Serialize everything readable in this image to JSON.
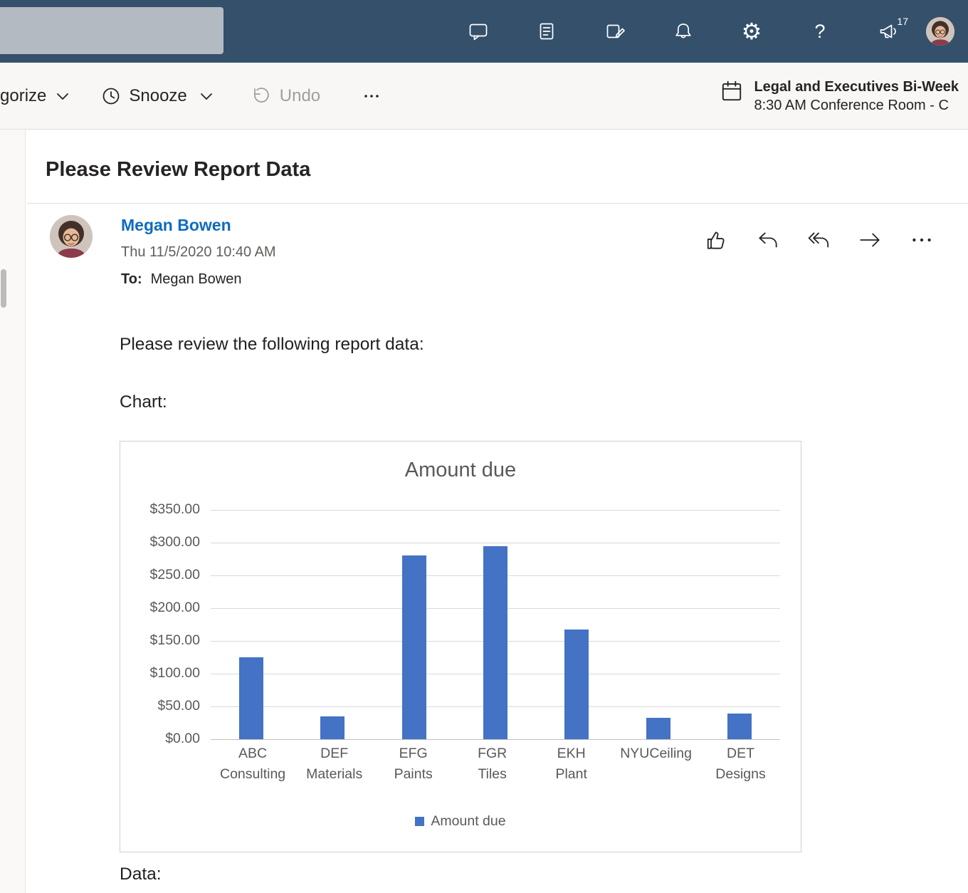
{
  "theme": {
    "topbar_bg": "#34506b",
    "accent_link": "#0f6cbd",
    "bar_color": "#4472C4"
  },
  "topbar": {
    "badge_count": "17",
    "gear_glyph": "⚙",
    "help_glyph": "?",
    "icons": [
      "chat-icon",
      "notebook-icon",
      "tasks-icon",
      "bell-icon",
      "gear-icon",
      "help-icon",
      "megaphone-icon",
      "avatar"
    ]
  },
  "command_bar": {
    "categorize_label": "gorize",
    "snooze_label": "Snooze",
    "undo_label": "Undo",
    "event_title": "Legal and Executives Bi-Week",
    "event_subtitle": "8:30 AM Conference Room - C"
  },
  "email": {
    "subject": "Please Review Report Data",
    "sender_name": "Megan Bowen",
    "sent_datetime": "Thu 11/5/2020 10:40 AM",
    "to_label": "To:",
    "to_recipients": "Megan Bowen",
    "body_intro": "Please review the following report data:",
    "chart_caption": "Chart:",
    "data_caption": "Data:"
  },
  "chart_data": {
    "type": "bar",
    "title": "Amount due",
    "categories": [
      "ABC Consulting",
      "DEF Materials",
      "EFG Paints",
      "FGR Tiles",
      "EKH Plant",
      "NYUCeiling",
      "DET Designs"
    ],
    "values": [
      125,
      35,
      280,
      295,
      167,
      33,
      39
    ],
    "series_name": "Amount due",
    "xlabel": "",
    "ylabel": "",
    "ylim": [
      0,
      350
    ],
    "ytick_step": 50,
    "yticks": [
      "$0.00",
      "$50.00",
      "$100.00",
      "$150.00",
      "$200.00",
      "$250.00",
      "$300.00",
      "$350.00"
    ],
    "legend": [
      "Amount due"
    ],
    "legend_position": "bottom",
    "bar_color": "#4472C4",
    "grid": true
  }
}
